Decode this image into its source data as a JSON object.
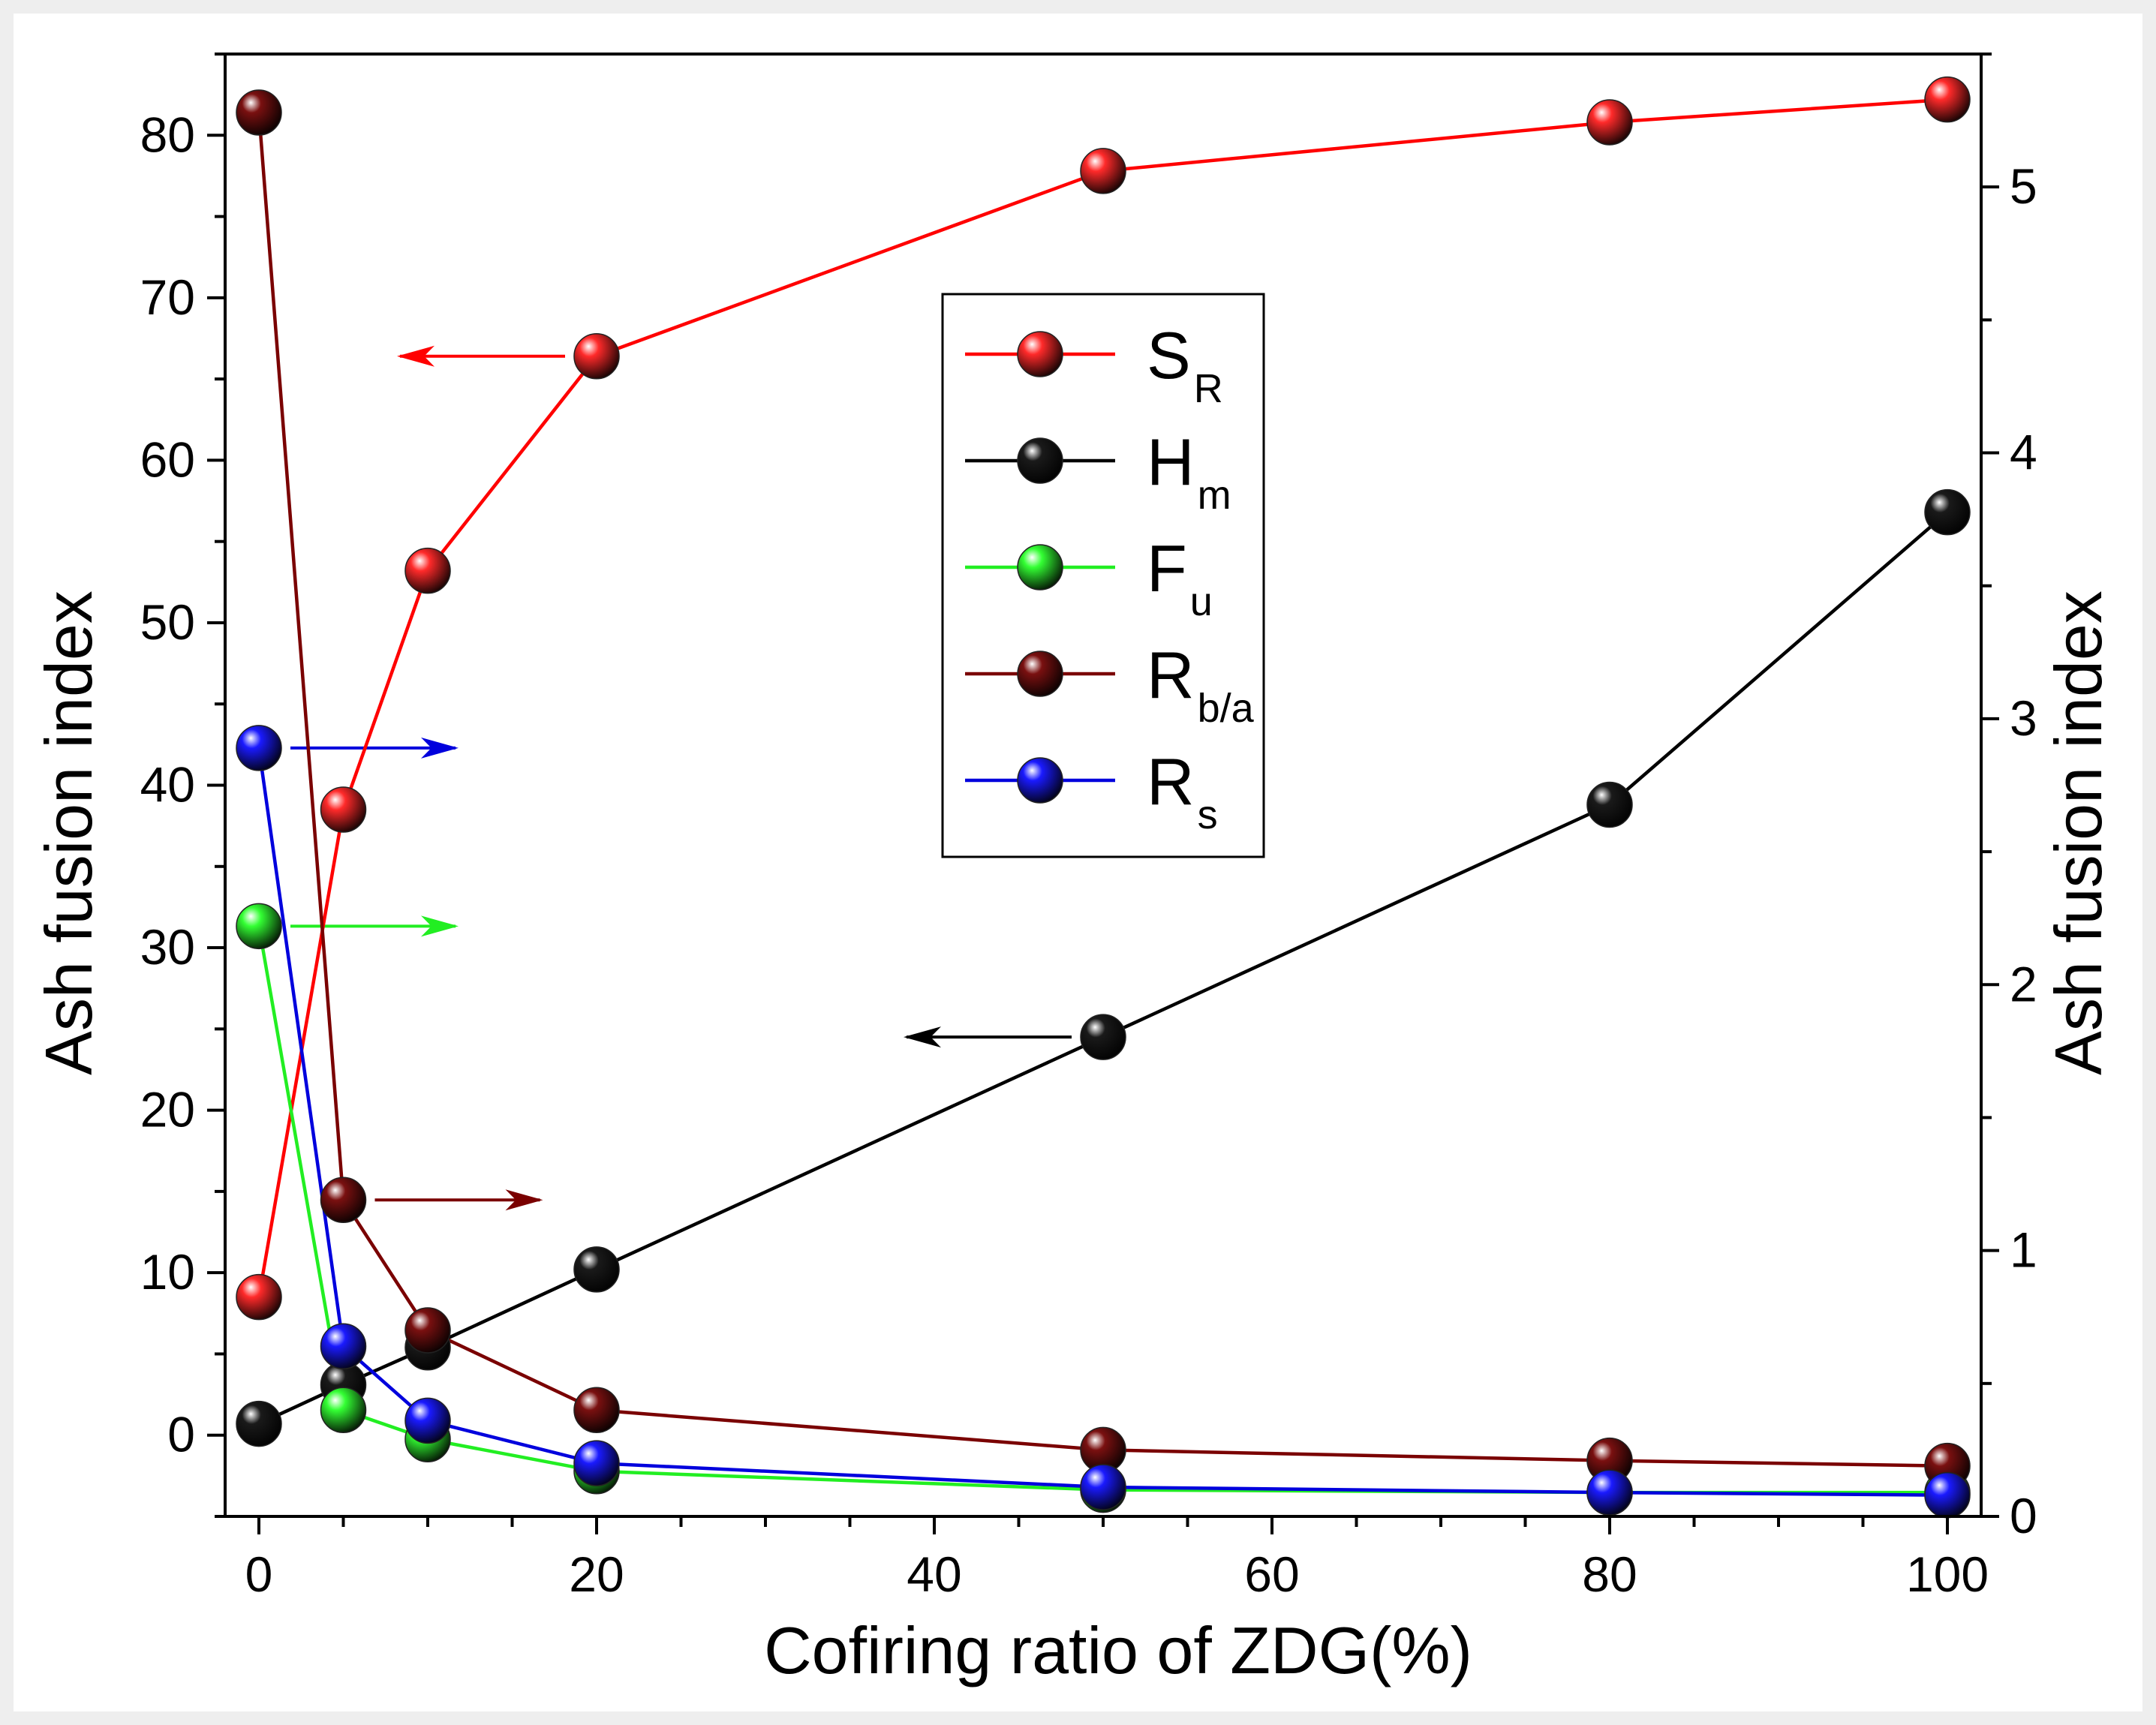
{
  "chart_data": {
    "type": "line",
    "title": "",
    "xlabel": "Cofiring ratio of ZDG(%)",
    "ylabel_left": "Ash fusion index",
    "ylabel_right": "Ash fusion index",
    "xlim": [
      -2,
      102
    ],
    "ylim_left": [
      -5,
      85
    ],
    "ylim_right": [
      0,
      5.5
    ],
    "x_ticks": [
      0,
      20,
      40,
      60,
      80,
      100
    ],
    "y_ticks_left": [
      0,
      10,
      20,
      30,
      40,
      50,
      60,
      70,
      80
    ],
    "y_ticks_right": [
      0,
      1,
      2,
      3,
      4,
      5
    ],
    "grid": false,
    "legend_position": "center",
    "x": [
      0,
      5,
      10,
      20,
      50,
      80,
      100
    ],
    "series": [
      {
        "name": "S",
        "subscript": "R",
        "axis": "left",
        "color": "#ff0000",
        "marker_color": "#ff2a2a",
        "values": [
          8.5,
          38.5,
          53.2,
          66.4,
          77.8,
          80.8,
          82.2
        ]
      },
      {
        "name": "H",
        "subscript": "m",
        "axis": "left",
        "color": "#000000",
        "marker_color": "#1a1a1a",
        "values": [
          0.7,
          3.1,
          5.4,
          10.2,
          24.5,
          38.8,
          56.8
        ]
      },
      {
        "name": "F",
        "subscript": "u",
        "axis": "right",
        "color": "#22ee22",
        "marker_color": "#33ff33",
        "values": [
          2.22,
          0.4,
          0.29,
          0.17,
          0.1,
          0.09,
          0.09
        ]
      },
      {
        "name": "R",
        "subscript": "b/a",
        "axis": "right",
        "color": "#7a0000",
        "marker_color": "#7a1010",
        "values": [
          5.28,
          1.19,
          0.7,
          0.4,
          0.25,
          0.21,
          0.19
        ]
      },
      {
        "name": "R",
        "subscript": "s",
        "axis": "right",
        "color": "#0000dd",
        "marker_color": "#1a1aff",
        "values": [
          2.89,
          0.64,
          0.36,
          0.2,
          0.11,
          0.09,
          0.08
        ]
      }
    ],
    "annotations": [
      {
        "series": "S_R",
        "direction": "left",
        "x": 20,
        "axis": "left",
        "y": 66.4
      },
      {
        "series": "H_m",
        "direction": "left",
        "x": 50,
        "axis": "left",
        "y": 24.5
      },
      {
        "series": "R_s",
        "direction": "right",
        "x": 0,
        "axis": "right",
        "y": 2.89
      },
      {
        "series": "F_u",
        "direction": "right",
        "x": 0,
        "axis": "right",
        "y": 2.22
      },
      {
        "series": "R_b/a",
        "direction": "right",
        "x": 5,
        "axis": "right",
        "y": 1.19
      }
    ]
  }
}
